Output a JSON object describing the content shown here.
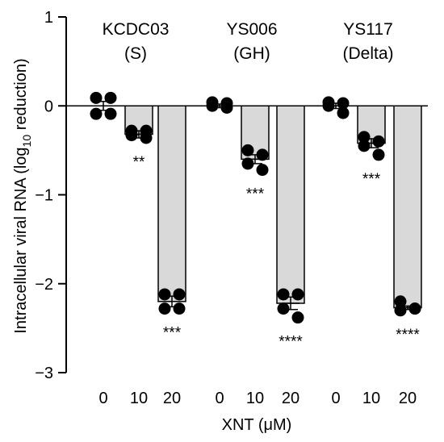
{
  "chart_data": {
    "type": "bar",
    "ylabel": "Intracellular viral RNA (log",
    "ylabel_sub": "10",
    "ylabel_end": " reduction)",
    "xlabel": "XNT (μM)",
    "ylim": [
      -3,
      1
    ],
    "yticks": [
      1,
      0,
      -1,
      -2,
      -3
    ],
    "ytick_labels": [
      "1",
      "0",
      "−1",
      "−2",
      "−3"
    ],
    "groups": [
      {
        "title_line1": "KCDC03",
        "title_line2": "(S)",
        "bars": [
          {
            "x_label": "0",
            "mean": 0.0,
            "sem": 0.05,
            "points": [
              0.09,
              0.09,
              -0.09,
              -0.09
            ],
            "significance": ""
          },
          {
            "x_label": "10",
            "mean": -0.32,
            "sem": 0.04,
            "points": [
              -0.28,
              -0.28,
              -0.33,
              -0.36
            ],
            "significance": "**"
          },
          {
            "x_label": "20",
            "mean": -2.2,
            "sem": 0.06,
            "points": [
              -2.12,
              -2.12,
              -2.28,
              -2.28
            ],
            "significance": "***"
          }
        ]
      },
      {
        "title_line1": "YS006",
        "title_line2": "(GH)",
        "bars": [
          {
            "x_label": "0",
            "mean": 0.0,
            "sem": 0.02,
            "points": [
              0.04,
              0.03,
              0.0,
              -0.02
            ],
            "significance": ""
          },
          {
            "x_label": "10",
            "mean": -0.6,
            "sem": 0.05,
            "points": [
              -0.5,
              -0.55,
              -0.65,
              -0.72
            ],
            "significance": "***"
          },
          {
            "x_label": "20",
            "mean": -2.22,
            "sem": 0.07,
            "points": [
              -2.12,
              -2.12,
              -2.28,
              -2.38
            ],
            "significance": "****"
          }
        ]
      },
      {
        "title_line1": "YS117",
        "title_line2": "(Delta)",
        "bars": [
          {
            "x_label": "0",
            "mean": 0.0,
            "sem": 0.03,
            "points": [
              0.04,
              0.03,
              0.0,
              -0.08
            ],
            "significance": ""
          },
          {
            "x_label": "10",
            "mean": -0.42,
            "sem": 0.05,
            "points": [
              -0.35,
              -0.4,
              -0.45,
              -0.55
            ],
            "significance": "***"
          },
          {
            "x_label": "20",
            "mean": -2.27,
            "sem": 0.02,
            "points": [
              -2.2,
              -2.28,
              -2.3,
              -2.28
            ],
            "significance": "****"
          }
        ]
      }
    ],
    "bar_fill": "#d9d9d9",
    "point_color": "#000000"
  }
}
